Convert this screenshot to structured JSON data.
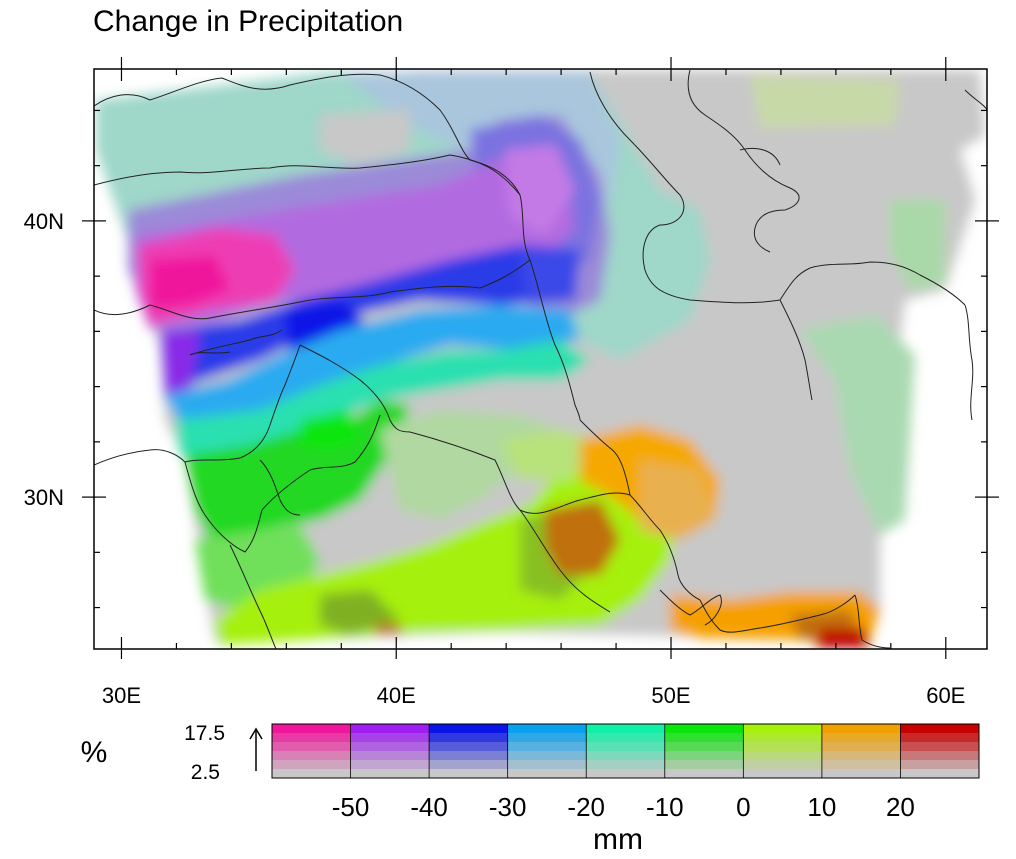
{
  "title": "Change in Precipitation",
  "map": {
    "lon_range": [
      29,
      61.5
    ],
    "lat_range": [
      24.5,
      45.5
    ],
    "x_ticks": [
      {
        "value": 30,
        "label": "30E"
      },
      {
        "value": 40,
        "label": "40E"
      },
      {
        "value": 50,
        "label": "50E"
      },
      {
        "value": 60,
        "label": "60E"
      }
    ],
    "y_ticks": [
      {
        "value": 40,
        "label": "40N"
      },
      {
        "value": 30,
        "label": "30N"
      }
    ]
  },
  "colorbar": {
    "xlabel": "mm",
    "ylabel": "%",
    "y_ticks": [
      "17.5",
      "2.5"
    ],
    "arrow": "↑",
    "bin_edges": [
      -50,
      -40,
      -30,
      -20,
      -10,
      0,
      10,
      20
    ],
    "edge_labels": [
      "-50",
      "-40",
      "-30",
      "-20",
      "-10",
      "0",
      "10",
      "20"
    ],
    "bins": [
      {
        "range": "< -50",
        "color": "#f0169c"
      },
      {
        "range": "-50 to -40",
        "color": "#9f1ff0"
      },
      {
        "range": "-40 to -30",
        "color": "#0a14e6"
      },
      {
        "range": "-30 to -20",
        "color": "#0aa0f0"
      },
      {
        "range": "-20 to -10",
        "color": "#10f0a8"
      },
      {
        "range": "-10 to 0",
        "color": "#0ae60a"
      },
      {
        "range": "0 to 10",
        "color": "#a6f00a"
      },
      {
        "range": "10 to 20",
        "color": "#f0a000"
      },
      {
        "range": "> 20",
        "color": "#c80000"
      }
    ],
    "neutral_color": "#c8c8c8"
  }
}
